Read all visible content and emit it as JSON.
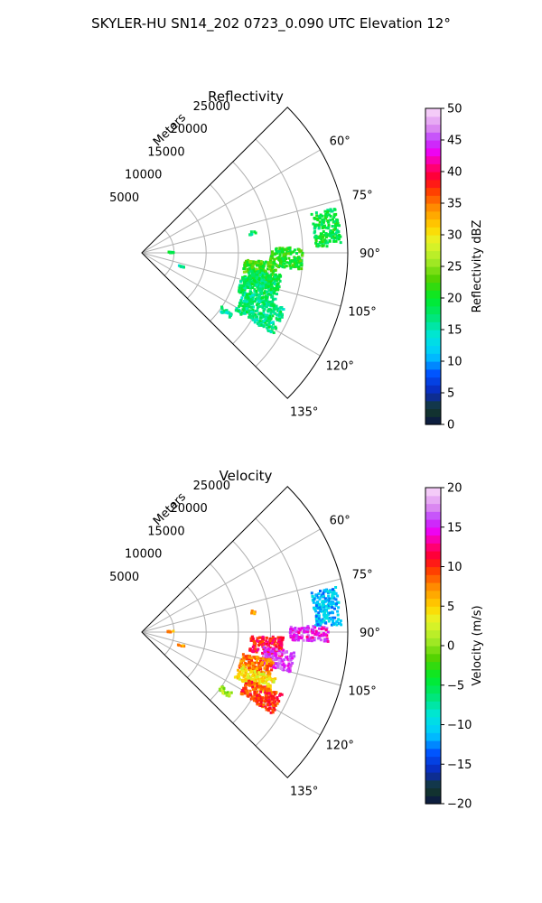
{
  "figure": {
    "title": "SKYLER-HU  SN14_202  0723_0.090 UTC Elevation 12°"
  },
  "chart_data": [
    {
      "type": "heatmap",
      "projection": "polar-sector",
      "title": "Reflectivity",
      "range_axis_label": "Meters",
      "range_ticks": [
        5000,
        10000,
        15000,
        20000,
        25000
      ],
      "range_tick_labels": [
        "5000",
        "10000",
        "15000",
        "20000",
        "25000"
      ],
      "range_max": 32000,
      "azimuth_range": [
        45,
        135
      ],
      "azimuth_ticks": [
        60,
        75,
        90,
        105,
        120,
        135
      ],
      "azimuth_tick_labels": [
        "60°",
        "75°",
        "90°",
        "105°",
        "120°",
        "135°"
      ],
      "grid": true,
      "colorbar": {
        "label": "Reflectivity dBZ",
        "min": 0,
        "max": 50,
        "ticks": [
          0,
          5,
          10,
          15,
          20,
          25,
          30,
          35,
          40,
          45,
          50
        ],
        "tick_labels": [
          "0",
          "5",
          "10",
          "15",
          "20",
          "25",
          "30",
          "35",
          "40",
          "45",
          "50"
        ]
      },
      "echo_regions": [
        {
          "az_range": [
            77,
            88
          ],
          "range_km": [
            27,
            31
          ],
          "value": 19
        },
        {
          "az_range": [
            88,
            96
          ],
          "range_km": [
            20,
            25
          ],
          "value": 21
        },
        {
          "az_range": [
            94,
            103
          ],
          "range_km": [
            16,
            21
          ],
          "value": 22
        },
        {
          "az_range": [
            99,
            106
          ],
          "range_km": [
            17,
            22
          ],
          "value": 19
        },
        {
          "az_range": [
            103,
            112
          ],
          "range_km": [
            16,
            22
          ],
          "value": 18
        },
        {
          "az_range": [
            111,
            122
          ],
          "range_km": [
            17,
            24
          ],
          "value": 17
        },
        {
          "az_range": [
            124,
            127
          ],
          "range_km": [
            15,
            17
          ],
          "value": 16
        },
        {
          "az_range": [
            88,
            90
          ],
          "range_km": [
            4,
            5
          ],
          "value": 18
        },
        {
          "az_range": [
            108,
            110
          ],
          "range_km": [
            6,
            7
          ],
          "value": 16
        },
        {
          "az_range": [
            79,
            81
          ],
          "range_km": [
            17,
            18
          ],
          "value": 17
        }
      ]
    },
    {
      "type": "heatmap",
      "projection": "polar-sector",
      "title": "Velocity",
      "range_axis_label": "Meters",
      "range_ticks": [
        5000,
        10000,
        15000,
        20000,
        25000
      ],
      "range_tick_labels": [
        "5000",
        "10000",
        "15000",
        "20000",
        "25000"
      ],
      "range_max": 32000,
      "azimuth_range": [
        45,
        135
      ],
      "azimuth_ticks": [
        60,
        75,
        90,
        105,
        120,
        135
      ],
      "azimuth_tick_labels": [
        "60°",
        "75°",
        "90°",
        "105°",
        "120°",
        "135°"
      ],
      "grid": true,
      "colorbar": {
        "label": "Velocity (m/s)",
        "min": -20,
        "max": 20,
        "ticks": [
          -20,
          -15,
          -10,
          -5,
          0,
          5,
          10,
          15,
          20
        ],
        "tick_labels": [
          "−20",
          "−15",
          "−10",
          "−5",
          "0",
          "5",
          "10",
          "15",
          "20"
        ]
      },
      "echo_regions": [
        {
          "az_range": [
            77,
            88
          ],
          "range_km": [
            27,
            31
          ],
          "value": -11
        },
        {
          "az_range": [
            88,
            93
          ],
          "range_km": [
            23,
            29
          ],
          "value": 15
        },
        {
          "az_range": [
            92,
            100
          ],
          "range_km": [
            17,
            22
          ],
          "value": 11
        },
        {
          "az_range": [
            97,
            105
          ],
          "range_km": [
            19,
            24
          ],
          "value": 16
        },
        {
          "az_range": [
            102,
            110
          ],
          "range_km": [
            16,
            21
          ],
          "value": 8
        },
        {
          "az_range": [
            109,
            116
          ],
          "range_km": [
            16,
            22
          ],
          "value": 4
        },
        {
          "az_range": [
            114,
            122
          ],
          "range_km": [
            18,
            24
          ],
          "value": 10
        },
        {
          "az_range": [
            124,
            127
          ],
          "range_km": [
            15,
            17
          ],
          "value": 1
        },
        {
          "az_range": [
            88,
            90
          ],
          "range_km": [
            4,
            5
          ],
          "value": 7
        },
        {
          "az_range": [
            108,
            110
          ],
          "range_km": [
            6,
            7
          ],
          "value": 7
        },
        {
          "az_range": [
            79,
            81
          ],
          "range_km": [
            17,
            18
          ],
          "value": 7
        }
      ]
    }
  ],
  "colors": {
    "grid": "#b0b0b0",
    "frame": "#000000"
  }
}
